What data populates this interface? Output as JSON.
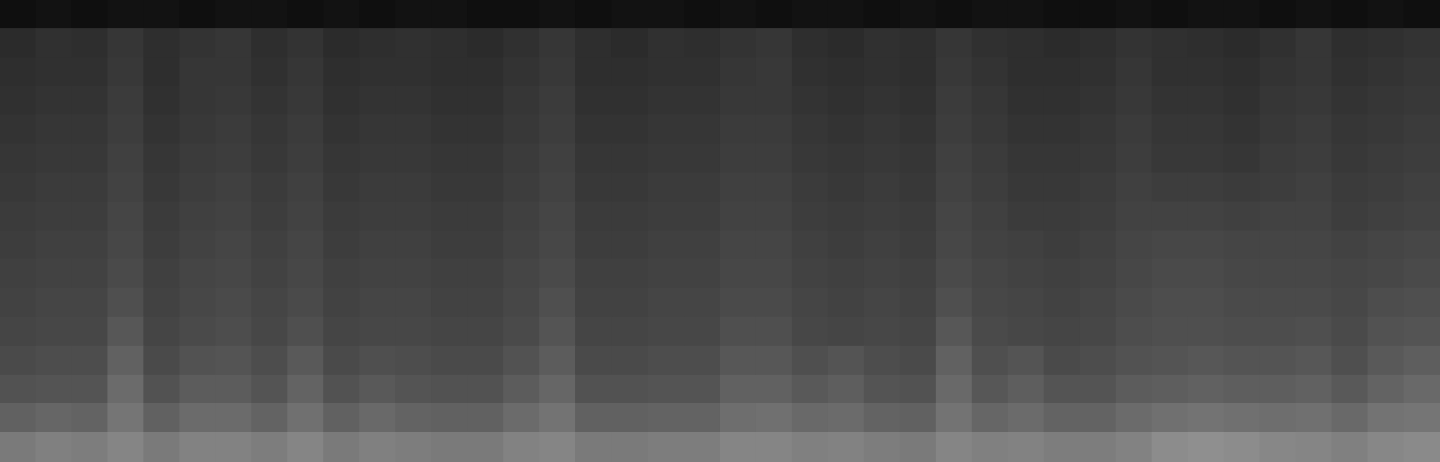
{
  "chart_data": {
    "type": "heatmap",
    "tick_labels": false,
    "zlim": [
      0,
      100
    ],
    "cells": [
      [
        6,
        7,
        6,
        7,
        7,
        6,
        7,
        7,
        6,
        7,
        6,
        7,
        7,
        6,
        6,
        7,
        6,
        7,
        7,
        6,
        7,
        6,
        7,
        7,
        6,
        7,
        6,
        7,
        7,
        6,
        6,
        7,
        6,
        7,
        7,
        6,
        7,
        6,
        7,
        6
      ],
      [
        17,
        19,
        18,
        21,
        18,
        20,
        21,
        18,
        20,
        17,
        18,
        19,
        18,
        17,
        19,
        21,
        18,
        17,
        19,
        18,
        20,
        21,
        18,
        17,
        19,
        18,
        21,
        19,
        18,
        17,
        18,
        20,
        19,
        18,
        17,
        19,
        21,
        18,
        19,
        20
      ],
      [
        18,
        19,
        19,
        22,
        18,
        21,
        21,
        19,
        21,
        18,
        19,
        19,
        18,
        18,
        20,
        22,
        18,
        18,
        19,
        19,
        21,
        22,
        19,
        18,
        19,
        18,
        22,
        20,
        18,
        18,
        19,
        21,
        19,
        19,
        18,
        20,
        21,
        19,
        20,
        21
      ],
      [
        19,
        20,
        20,
        23,
        19,
        21,
        22,
        20,
        22,
        19,
        20,
        20,
        19,
        19,
        21,
        23,
        19,
        19,
        20,
        20,
        22,
        22,
        20,
        19,
        20,
        19,
        23,
        21,
        19,
        19,
        20,
        22,
        20,
        20,
        19,
        21,
        22,
        20,
        21,
        22
      ],
      [
        20,
        21,
        21,
        24,
        20,
        22,
        23,
        21,
        23,
        20,
        21,
        21,
        20,
        20,
        22,
        24,
        20,
        20,
        21,
        21,
        23,
        23,
        21,
        20,
        21,
        20,
        24,
        22,
        20,
        20,
        21,
        23,
        21,
        21,
        20,
        22,
        23,
        21,
        22,
        23
      ],
      [
        21,
        22,
        22,
        25,
        21,
        23,
        24,
        22,
        24,
        21,
        22,
        22,
        21,
        21,
        23,
        25,
        21,
        21,
        22,
        22,
        24,
        24,
        22,
        21,
        22,
        21,
        25,
        23,
        21,
        21,
        22,
        24,
        22,
        22,
        21,
        23,
        24,
        22,
        23,
        24
      ],
      [
        22,
        23,
        23,
        26,
        22,
        24,
        25,
        23,
        25,
        22,
        23,
        23,
        22,
        22,
        24,
        26,
        22,
        22,
        23,
        23,
        25,
        25,
        23,
        22,
        23,
        22,
        26,
        24,
        22,
        22,
        23,
        25,
        24,
        24,
        23,
        24,
        25,
        23,
        24,
        25
      ],
      [
        23,
        24,
        24,
        27,
        23,
        25,
        26,
        24,
        26,
        23,
        24,
        24,
        23,
        23,
        25,
        27,
        23,
        23,
        24,
        24,
        26,
        26,
        24,
        23,
        24,
        23,
        27,
        25,
        23,
        23,
        24,
        26,
        26,
        26,
        25,
        26,
        26,
        24,
        25,
        26
      ],
      [
        24,
        25,
        25,
        28,
        24,
        26,
        27,
        25,
        27,
        24,
        25,
        25,
        24,
        24,
        26,
        28,
        24,
        24,
        25,
        25,
        27,
        27,
        25,
        24,
        25,
        24,
        28,
        26,
        25,
        24,
        25,
        27,
        28,
        28,
        27,
        27,
        27,
        26,
        27,
        28
      ],
      [
        25,
        26,
        26,
        29,
        25,
        27,
        28,
        26,
        28,
        25,
        26,
        26,
        25,
        25,
        27,
        29,
        25,
        25,
        26,
        26,
        28,
        28,
        26,
        25,
        26,
        25,
        29,
        27,
        26,
        25,
        26,
        28,
        29,
        29,
        28,
        28,
        28,
        27,
        28,
        29
      ],
      [
        26,
        27,
        27,
        31,
        26,
        28,
        29,
        27,
        29,
        26,
        27,
        27,
        26,
        26,
        28,
        31,
        26,
        26,
        27,
        27,
        29,
        29,
        27,
        26,
        27,
        26,
        31,
        28,
        27,
        26,
        27,
        29,
        30,
        30,
        29,
        29,
        29,
        28,
        30,
        31
      ],
      [
        27,
        28,
        28,
        34,
        27,
        29,
        30,
        28,
        31,
        27,
        28,
        28,
        27,
        27,
        29,
        33,
        27,
        27,
        28,
        28,
        31,
        31,
        28,
        27,
        28,
        27,
        34,
        29,
        28,
        27,
        28,
        30,
        31,
        31,
        30,
        30,
        31,
        29,
        32,
        33
      ],
      [
        29,
        30,
        30,
        38,
        29,
        32,
        33,
        30,
        35,
        29,
        31,
        30,
        29,
        29,
        32,
        36,
        29,
        29,
        30,
        30,
        34,
        34,
        31,
        33,
        30,
        29,
        38,
        31,
        33,
        29,
        30,
        32,
        33,
        34,
        33,
        33,
        34,
        31,
        35,
        37
      ],
      [
        32,
        33,
        33,
        42,
        32,
        36,
        36,
        33,
        39,
        32,
        35,
        33,
        32,
        32,
        36,
        40,
        32,
        32,
        33,
        33,
        38,
        38,
        35,
        37,
        33,
        32,
        41,
        34,
        37,
        33,
        33,
        36,
        37,
        38,
        37,
        37,
        38,
        35,
        39,
        41
      ],
      [
        38,
        40,
        39,
        46,
        38,
        42,
        42,
        39,
        44,
        38,
        41,
        39,
        38,
        38,
        42,
        45,
        38,
        38,
        39,
        39,
        43,
        44,
        41,
        42,
        39,
        38,
        45,
        40,
        42,
        39,
        39,
        42,
        44,
        45,
        44,
        43,
        44,
        41,
        45,
        46
      ],
      [
        48,
        50,
        49,
        52,
        48,
        51,
        51,
        49,
        52,
        48,
        50,
        49,
        48,
        48,
        51,
        52,
        48,
        48,
        49,
        49,
        52,
        52,
        50,
        51,
        49,
        48,
        52,
        50,
        51,
        49,
        49,
        51,
        55,
        56,
        55,
        53,
        52,
        50,
        53,
        54
      ]
    ]
  }
}
